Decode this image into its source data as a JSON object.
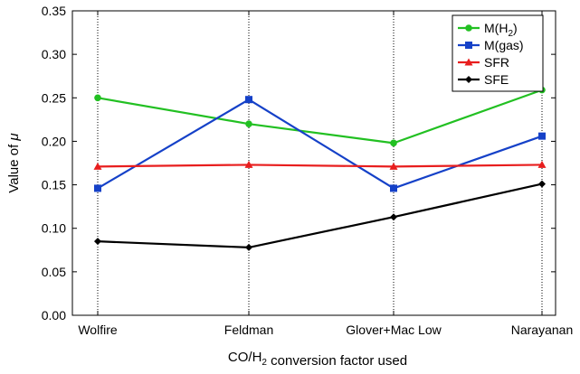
{
  "chart_data": {
    "type": "line",
    "categories": [
      "Wolfire",
      "Feldman",
      "Glover+Mac Low",
      "Narayanan"
    ],
    "series": [
      {
        "name": "M(H2)",
        "color": "#22c022",
        "marker": "circle",
        "values": [
          0.25,
          0.22,
          0.198,
          0.259
        ]
      },
      {
        "name": "M(gas)",
        "color": "#1541c8",
        "marker": "square",
        "values": [
          0.146,
          0.248,
          0.146,
          0.206
        ]
      },
      {
        "name": "SFR",
        "color": "#e81e1e",
        "marker": "triangle",
        "values": [
          0.171,
          0.173,
          0.171,
          0.173
        ]
      },
      {
        "name": "SFE",
        "color": "#000000",
        "marker": "diamond",
        "values": [
          0.085,
          0.078,
          0.113,
          0.151
        ]
      }
    ],
    "ylim": [
      0,
      0.35
    ],
    "yticks": [
      "0.00",
      "0.05",
      "0.10",
      "0.15",
      "0.20",
      "0.25",
      "0.30",
      "0.35"
    ],
    "ylabel": "Value of μ",
    "xlabel": "CO/H2 conversion factor used",
    "vertical_gridlines": "dotted at each category",
    "legend_position": "top-right"
  }
}
